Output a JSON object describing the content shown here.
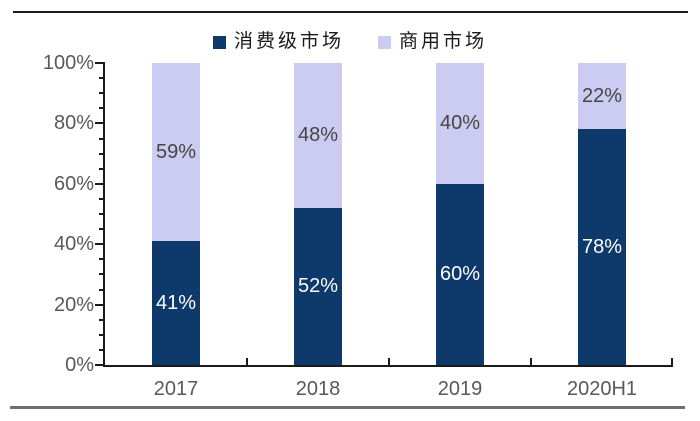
{
  "page": {
    "background": "#ffffff"
  },
  "top_divider_color": "#1a1a1a",
  "bottom_divider_color": "#6f6f6f",
  "chart_data": {
    "type": "stacked-bar",
    "title": "",
    "categories": [
      "2017",
      "2018",
      "2019",
      "2020H1"
    ],
    "series": [
      {
        "name": "消费级市场",
        "color": "#0d3a6b",
        "label_color": "#ffffff",
        "values": [
          41,
          52,
          60,
          78
        ]
      },
      {
        "name": "商用市场",
        "color": "#ccccf2",
        "label_color": "#454545",
        "values": [
          59,
          48,
          40,
          22
        ]
      }
    ],
    "value_suffix": "%",
    "ylim": [
      0,
      100
    ],
    "major_tick_step": 20,
    "minor_tick_step": 5,
    "y_tick_labels": [
      "0%",
      "20%",
      "40%",
      "60%",
      "80%",
      "100%"
    ],
    "axis_color": "#1a1a1a",
    "tick_label_color": "#595959",
    "legend_position": "top",
    "grid": false
  }
}
